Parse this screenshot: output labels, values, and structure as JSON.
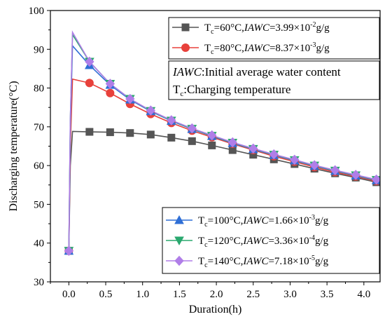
{
  "chart_data": {
    "type": "line",
    "xlabel": "Duration(h)",
    "ylabel": "Discharging temperature(°C)",
    "xlim": [
      -0.25,
      4.22
    ],
    "ylim": [
      30,
      100
    ],
    "xticks": [
      "0.0",
      "0.5",
      "1.0",
      "1.5",
      "2.0",
      "2.5",
      "3.0",
      "3.5",
      "4.0"
    ],
    "yticks": [
      "30",
      "40",
      "50",
      "60",
      "70",
      "80",
      "90",
      "100"
    ],
    "xtick_values": [
      0.0,
      0.5,
      1.0,
      1.5,
      2.0,
      2.5,
      3.0,
      3.5,
      4.0
    ],
    "ytick_values": [
      30,
      40,
      50,
      60,
      70,
      80,
      90,
      100
    ],
    "annotation": {
      "line1_italic": "IAWC",
      "line1_rest": ":Initial average water content",
      "line2_main": "T",
      "line2_sub": "c",
      "line2_rest": ":Charging temperature"
    },
    "series": [
      {
        "name_parts": {
          "t": "T",
          "sub": "c",
          "cond": "=60°C,",
          "iawc": "IAWC",
          "val": "=3.99×10",
          "exp": "-2",
          "unit": "g/g"
        },
        "color": "#555555",
        "marker": "square",
        "x": [
          0.0,
          0.02,
          0.05,
          0.28,
          0.56,
          0.83,
          1.11,
          1.39,
          1.67,
          1.94,
          2.22,
          2.5,
          2.78,
          3.06,
          3.33,
          3.61,
          3.89,
          4.17,
          4.22
        ],
        "y": [
          38.0,
          60.0,
          68.8,
          68.7,
          68.6,
          68.4,
          68.0,
          67.2,
          66.3,
          65.2,
          64.0,
          62.8,
          61.6,
          60.4,
          59.2,
          58.0,
          56.9,
          55.7,
          55.0
        ],
        "marker_x": [
          0.0,
          0.28,
          0.56,
          0.83,
          1.11,
          1.39,
          1.67,
          1.94,
          2.22,
          2.5,
          2.78,
          3.06,
          3.33,
          3.61,
          3.89,
          4.17
        ],
        "marker_y": [
          38.0,
          68.7,
          68.6,
          68.4,
          68.0,
          67.2,
          66.3,
          65.2,
          64.0,
          62.8,
          61.6,
          60.4,
          59.2,
          58.0,
          56.9,
          55.7
        ]
      },
      {
        "name_parts": {
          "t": "T",
          "sub": "c",
          "cond": "=80°C,",
          "iawc": "IAWC",
          "val": "=8.37×10",
          "exp": "-3",
          "unit": "g/g"
        },
        "color": "#e8413b",
        "marker": "circle",
        "x": [
          0.0,
          0.02,
          0.05,
          0.28,
          0.56,
          0.83,
          1.11,
          1.39,
          1.67,
          1.94,
          2.22,
          2.5,
          2.78,
          3.06,
          3.33,
          3.61,
          3.89,
          4.17,
          4.22
        ],
        "y": [
          38.0,
          65.0,
          82.3,
          81.3,
          78.7,
          75.9,
          73.3,
          71.0,
          69.0,
          67.3,
          65.6,
          64.0,
          62.4,
          61.0,
          59.6,
          58.3,
          57.2,
          56.0,
          55.5
        ],
        "marker_x": [
          0.0,
          0.28,
          0.56,
          0.83,
          1.11,
          1.39,
          1.67,
          1.94,
          2.22,
          2.5,
          2.78,
          3.06,
          3.33,
          3.61,
          3.89,
          4.17
        ],
        "marker_y": [
          38.0,
          81.3,
          78.7,
          75.9,
          73.3,
          71.0,
          69.0,
          67.3,
          65.6,
          64.0,
          62.4,
          61.0,
          59.6,
          58.3,
          57.2,
          56.0
        ]
      },
      {
        "name_parts": {
          "t": "T",
          "sub": "c",
          "cond": "=100°C,",
          "iawc": "IAWC",
          "val": "=1.66×10",
          "exp": "-3",
          "unit": "g/g"
        },
        "color": "#2f6fd6",
        "marker": "triangle-up",
        "x": [
          0.0,
          0.02,
          0.05,
          0.28,
          0.56,
          0.83,
          1.11,
          1.39,
          1.67,
          1.94,
          2.22,
          2.5,
          2.78,
          3.06,
          3.33,
          3.61,
          3.89,
          4.17,
          4.22
        ],
        "y": [
          38.0,
          70.0,
          90.9,
          85.9,
          80.8,
          77.0,
          74.0,
          71.5,
          69.4,
          67.6,
          65.8,
          64.2,
          62.7,
          61.3,
          59.9,
          58.6,
          57.4,
          56.2,
          55.8
        ],
        "marker_x": [
          0.0,
          0.28,
          0.56,
          0.83,
          1.11,
          1.39,
          1.67,
          1.94,
          2.22,
          2.5,
          2.78,
          3.06,
          3.33,
          3.61,
          3.89,
          4.17
        ],
        "marker_y": [
          38.0,
          85.9,
          80.8,
          77.0,
          74.0,
          71.5,
          69.4,
          67.6,
          65.8,
          64.2,
          62.7,
          61.3,
          59.9,
          58.6,
          57.4,
          56.2
        ]
      },
      {
        "name_parts": {
          "t": "T",
          "sub": "c",
          "cond": "=120°C,",
          "iawc": "IAWC",
          "val": "=3.36×10",
          "exp": "-4",
          "unit": "g/g"
        },
        "color": "#2aa86f",
        "marker": "triangle-down",
        "x": [
          0.0,
          0.02,
          0.05,
          0.28,
          0.56,
          0.83,
          1.11,
          1.39,
          1.67,
          1.94,
          2.22,
          2.5,
          2.78,
          3.06,
          3.33,
          3.61,
          3.89,
          4.17,
          4.22
        ],
        "y": [
          38.0,
          72.0,
          93.8,
          86.8,
          81.1,
          77.2,
          74.1,
          71.6,
          69.5,
          67.7,
          65.9,
          64.3,
          62.8,
          61.4,
          60.0,
          58.7,
          57.5,
          56.3,
          55.9
        ],
        "marker_x": [
          0.0,
          0.28,
          0.56,
          0.83,
          1.11,
          1.39,
          1.67,
          1.94,
          2.22,
          2.5,
          2.78,
          3.06,
          3.33,
          3.61,
          3.89,
          4.17
        ],
        "marker_y": [
          38.0,
          86.8,
          81.1,
          77.2,
          74.1,
          71.6,
          69.5,
          67.7,
          65.9,
          64.3,
          62.8,
          61.4,
          60.0,
          58.7,
          57.5,
          56.3
        ]
      },
      {
        "name_parts": {
          "t": "T",
          "sub": "c",
          "cond": "=140°C,",
          "iawc": "IAWC",
          "val": "=7.18×10",
          "exp": "-5",
          "unit": "g/g"
        },
        "color": "#b07ee8",
        "marker": "diamond",
        "x": [
          0.0,
          0.02,
          0.05,
          0.28,
          0.56,
          0.83,
          1.11,
          1.39,
          1.67,
          1.94,
          2.22,
          2.5,
          2.78,
          3.06,
          3.33,
          3.61,
          3.89,
          4.17,
          4.22
        ],
        "y": [
          38.0,
          72.0,
          94.4,
          86.8,
          81.1,
          77.2,
          74.2,
          71.7,
          69.6,
          67.8,
          66.0,
          64.4,
          62.9,
          61.5,
          60.1,
          58.8,
          57.6,
          56.4,
          56.0
        ],
        "marker_x": [
          0.0,
          0.28,
          0.56,
          0.83,
          1.11,
          1.39,
          1.67,
          1.94,
          2.22,
          2.5,
          2.78,
          3.06,
          3.33,
          3.61,
          3.89,
          4.17
        ],
        "marker_y": [
          38.0,
          86.8,
          81.1,
          77.2,
          74.2,
          71.7,
          69.6,
          67.8,
          66.0,
          64.4,
          62.9,
          61.5,
          60.1,
          58.8,
          57.6,
          56.4
        ]
      }
    ],
    "legends": [
      {
        "series_indices": [
          0,
          1
        ],
        "placement": "top-right"
      },
      {
        "series_indices": [
          2,
          3,
          4
        ],
        "placement": "bottom-right"
      }
    ]
  }
}
